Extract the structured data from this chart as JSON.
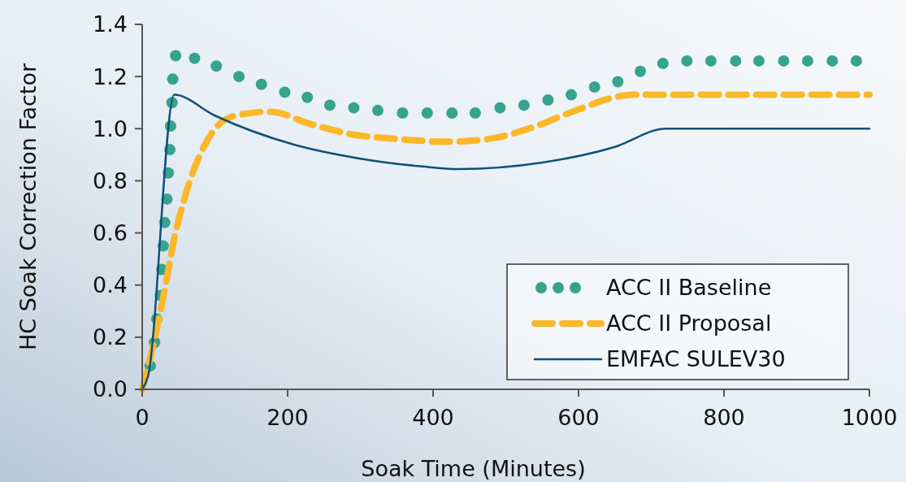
{
  "chart_data": {
    "type": "line",
    "xlabel": "Soak Time (Minutes)",
    "ylabel": "HC Soak Correction Factor",
    "xlim": [
      0,
      1000
    ],
    "xticks": [
      0,
      200,
      400,
      600,
      800,
      1000
    ],
    "ylim": [
      0,
      1.4
    ],
    "yticks": [
      {
        "value": 0,
        "label": "0.0"
      },
      {
        "value": 0.2,
        "label": "0.2"
      },
      {
        "value": 0.4,
        "label": "0.4"
      },
      {
        "value": 0.6,
        "label": "0.6"
      },
      {
        "value": 0.8,
        "label": "0.8"
      },
      {
        "value": 1,
        "label": "1.0"
      },
      {
        "value": 1.2,
        "label": "1.2"
      },
      {
        "value": 1.4,
        "label": "1.4"
      }
    ],
    "grid": false,
    "legend": "bottom right",
    "series": [
      {
        "name": "ACC II Baseline",
        "type": "scatter",
        "marker": "circle",
        "color": "#36a38e",
        "x": [
          11,
          17,
          20,
          25,
          27,
          29,
          31,
          34,
          36,
          38,
          39,
          41,
          42,
          46,
          72,
          102,
          133,
          164,
          196,
          227,
          258,
          291,
          324,
          358,
          392,
          426,
          458,
          492,
          525,
          558,
          590,
          622,
          654,
          685,
          716,
          749,
          782,
          816,
          848,
          882,
          915,
          949,
          982
        ],
        "values": [
          0.09,
          0.18,
          0.27,
          0.36,
          0.46,
          0.55,
          0.64,
          0.73,
          0.83,
          0.92,
          1.01,
          1.1,
          1.19,
          1.28,
          1.27,
          1.24,
          1.2,
          1.17,
          1.14,
          1.12,
          1.09,
          1.08,
          1.07,
          1.06,
          1.06,
          1.06,
          1.06,
          1.08,
          1.09,
          1.11,
          1.13,
          1.16,
          1.18,
          1.22,
          1.25,
          1.26,
          1.26,
          1.26,
          1.26,
          1.26,
          1.26,
          1.26,
          1.26
        ]
      },
      {
        "name": "ACC II Proposal",
        "line_style": "dashed",
        "color": "#fbb829",
        "x": [
          0,
          11,
          28,
          45,
          67,
          95,
          128,
          177,
          229,
          285,
          352,
          419,
          475,
          542,
          587,
          676,
          717,
          1000
        ],
        "values": [
          0,
          0.12,
          0.34,
          0.59,
          0.81,
          0.98,
          1.05,
          1.065,
          1.02,
          0.98,
          0.96,
          0.95,
          0.96,
          1.01,
          1.06,
          1.13,
          1.13,
          1.13
        ]
      },
      {
        "name": "EMFAC SULEV30",
        "line_style": "solid",
        "color": "#0f5078",
        "x": [
          0,
          8,
          44,
          100,
          207,
          300,
          385,
          435,
          550,
          650,
          720,
          1000
        ],
        "values": [
          0,
          0.05,
          1.13,
          1.05,
          0.94,
          0.885,
          0.855,
          0.845,
          0.87,
          0.93,
          1.0,
          1.0
        ]
      }
    ]
  }
}
